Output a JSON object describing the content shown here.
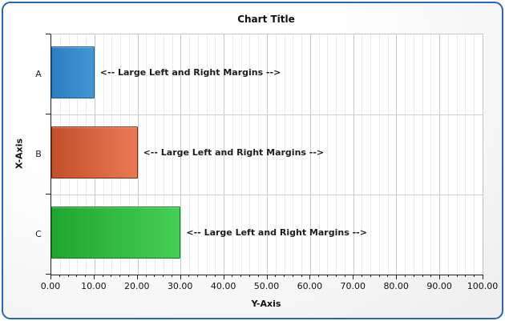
{
  "panel": {
    "border_color": "#2a67ae",
    "background_inner": "#ffffff",
    "background_outer": "#ededed",
    "page_background": "#ffffff"
  },
  "chart_data": {
    "type": "bar",
    "orientation": "horizontal",
    "title": "Chart Title",
    "legend": "none",
    "grid": {
      "major_color": "#c9c9c9",
      "minor_color": "#ebebeb",
      "band_line_color": "#cfcfcf"
    },
    "category_axis": {
      "label": "X-Axis",
      "categories": [
        "A",
        "B",
        "C"
      ]
    },
    "value_axis": {
      "label": "Y-Axis",
      "min": 0,
      "max": 100,
      "major_step": 10,
      "minor_step": 2,
      "tick_labels": [
        "0.00",
        "10.00",
        "20.00",
        "30.00",
        "40.00",
        "50.00",
        "60.00",
        "70.00",
        "80.00",
        "90.00",
        "100.00"
      ]
    },
    "series": [
      {
        "category": "A",
        "value": 10,
        "annotation": "<-- Large Left and Right Margins -->",
        "fill_from": "#2b7ec2",
        "fill_to": "#4198d2",
        "border": "#1d5c8f"
      },
      {
        "category": "B",
        "value": 20,
        "annotation": "<-- Large Left and Right Margins -->",
        "fill_from": "#c25029",
        "fill_to": "#e97a51",
        "border": "#7d2c10"
      },
      {
        "category": "C",
        "value": 30,
        "annotation": "<-- Large Left and Right Margins -->",
        "fill_from": "#1fa62f",
        "fill_to": "#45cf53",
        "border": "#117d20"
      }
    ]
  }
}
